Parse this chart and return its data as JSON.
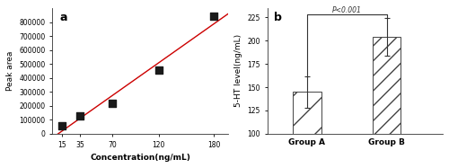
{
  "panel_a": {
    "label": "a",
    "x_data": [
      15,
      35,
      70,
      120,
      180
    ],
    "y_data": [
      60000,
      130000,
      215000,
      455000,
      840000
    ],
    "xlabel": "Concentration(ng/mL)",
    "ylabel": "Peak area",
    "xlim": [
      5,
      195
    ],
    "ylim": [
      0,
      900000
    ],
    "yticks": [
      0,
      100000,
      200000,
      300000,
      400000,
      500000,
      600000,
      700000,
      800000
    ],
    "xticks": [
      15,
      35,
      70,
      120,
      180
    ],
    "scatter_color": "#1a1a1a",
    "line_color": "#cc0000",
    "marker": "s",
    "marker_size": 28
  },
  "panel_b": {
    "label": "b",
    "categories": [
      "Group A",
      "Group B"
    ],
    "values": [
      145,
      204
    ],
    "errors": [
      17,
      20
    ],
    "ylabel": "5-HT level(ng/mL)",
    "ylim": [
      100,
      235
    ],
    "yticks": [
      100,
      125,
      150,
      175,
      200,
      225
    ],
    "hatch_patterns": [
      "/",
      "...."
    ],
    "significance_text": "P<0.001",
    "sig_y": 228,
    "bar_y1": 162,
    "bar_y2": 224
  },
  "bg_color": "#ffffff"
}
